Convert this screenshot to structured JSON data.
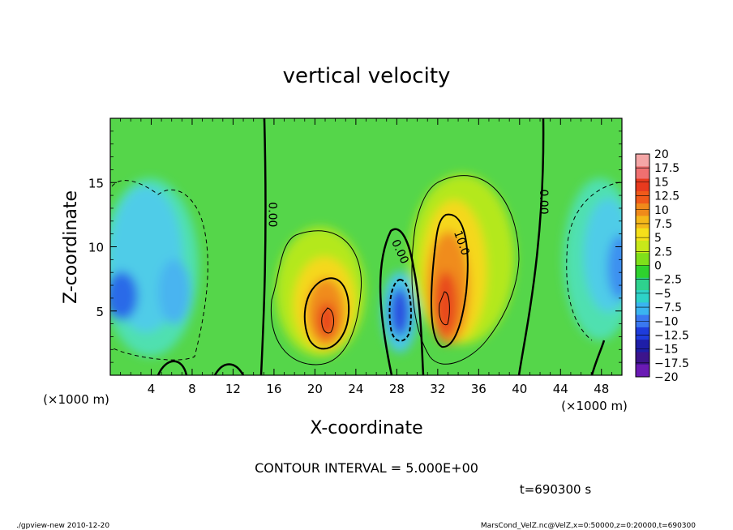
{
  "chart_data": {
    "type": "heatmap",
    "title": "vertical velocity",
    "xlabel": "X-coordinate",
    "ylabel": "Z-coordinate",
    "x_unit_left": "(×1000 m)",
    "x_unit_right": "(×1000 m)",
    "x_ticks": [
      "4",
      "8",
      "12",
      "16",
      "20",
      "24",
      "28",
      "32",
      "36",
      "40",
      "44",
      "48"
    ],
    "x_tick_values": [
      4,
      8,
      12,
      16,
      20,
      24,
      28,
      32,
      36,
      40,
      44,
      48
    ],
    "y_ticks": [
      "5",
      "10",
      "15"
    ],
    "y_tick_values": [
      5,
      10,
      15
    ],
    "xlim": [
      0,
      50
    ],
    "ylim": [
      0,
      20
    ],
    "contour_labels": [
      {
        "text": "0.00",
        "x": 15.5,
        "z": 12.5,
        "rotate": 90
      },
      {
        "text": "0.00",
        "x": 28.0,
        "z": 9.5,
        "rotate": 65
      },
      {
        "text": "10.0",
        "x": 34.0,
        "z": 10.2,
        "rotate": 70
      },
      {
        "text": "0.00",
        "x": 42.0,
        "z": 13.5,
        "rotate": 90
      }
    ],
    "colorbar": {
      "labels": [
        "20",
        "17.5",
        "15",
        "12.5",
        "10",
        "7.5",
        "5",
        "2.5",
        "0",
        "−2.5",
        "−5",
        "−7.5",
        "−10",
        "−12.5",
        "−15",
        "−17.5",
        "−20"
      ],
      "colors": [
        "#f4a6a6",
        "#f07070",
        "#e83a1e",
        "#f05a1a",
        "#f08a1a",
        "#f5b81a",
        "#f5e01a",
        "#c8e81a",
        "#7fe01a",
        "#2ed22e",
        "#2ed28e",
        "#2ed2c8",
        "#3ab4f0",
        "#3a78f0",
        "#1e3cdc",
        "#1e1ea8",
        "#3c148c",
        "#6a1ab4"
      ]
    },
    "contour_interval_text": "CONTOUR INTERVAL = 5.000E+00",
    "time_text": "t=690300 s",
    "footer_left": "./gpview-new   2010-12-20",
    "footer_right": "MarsCond_VelZ.nc@VelZ,x=0:50000,z=0:20000,t=690300"
  }
}
